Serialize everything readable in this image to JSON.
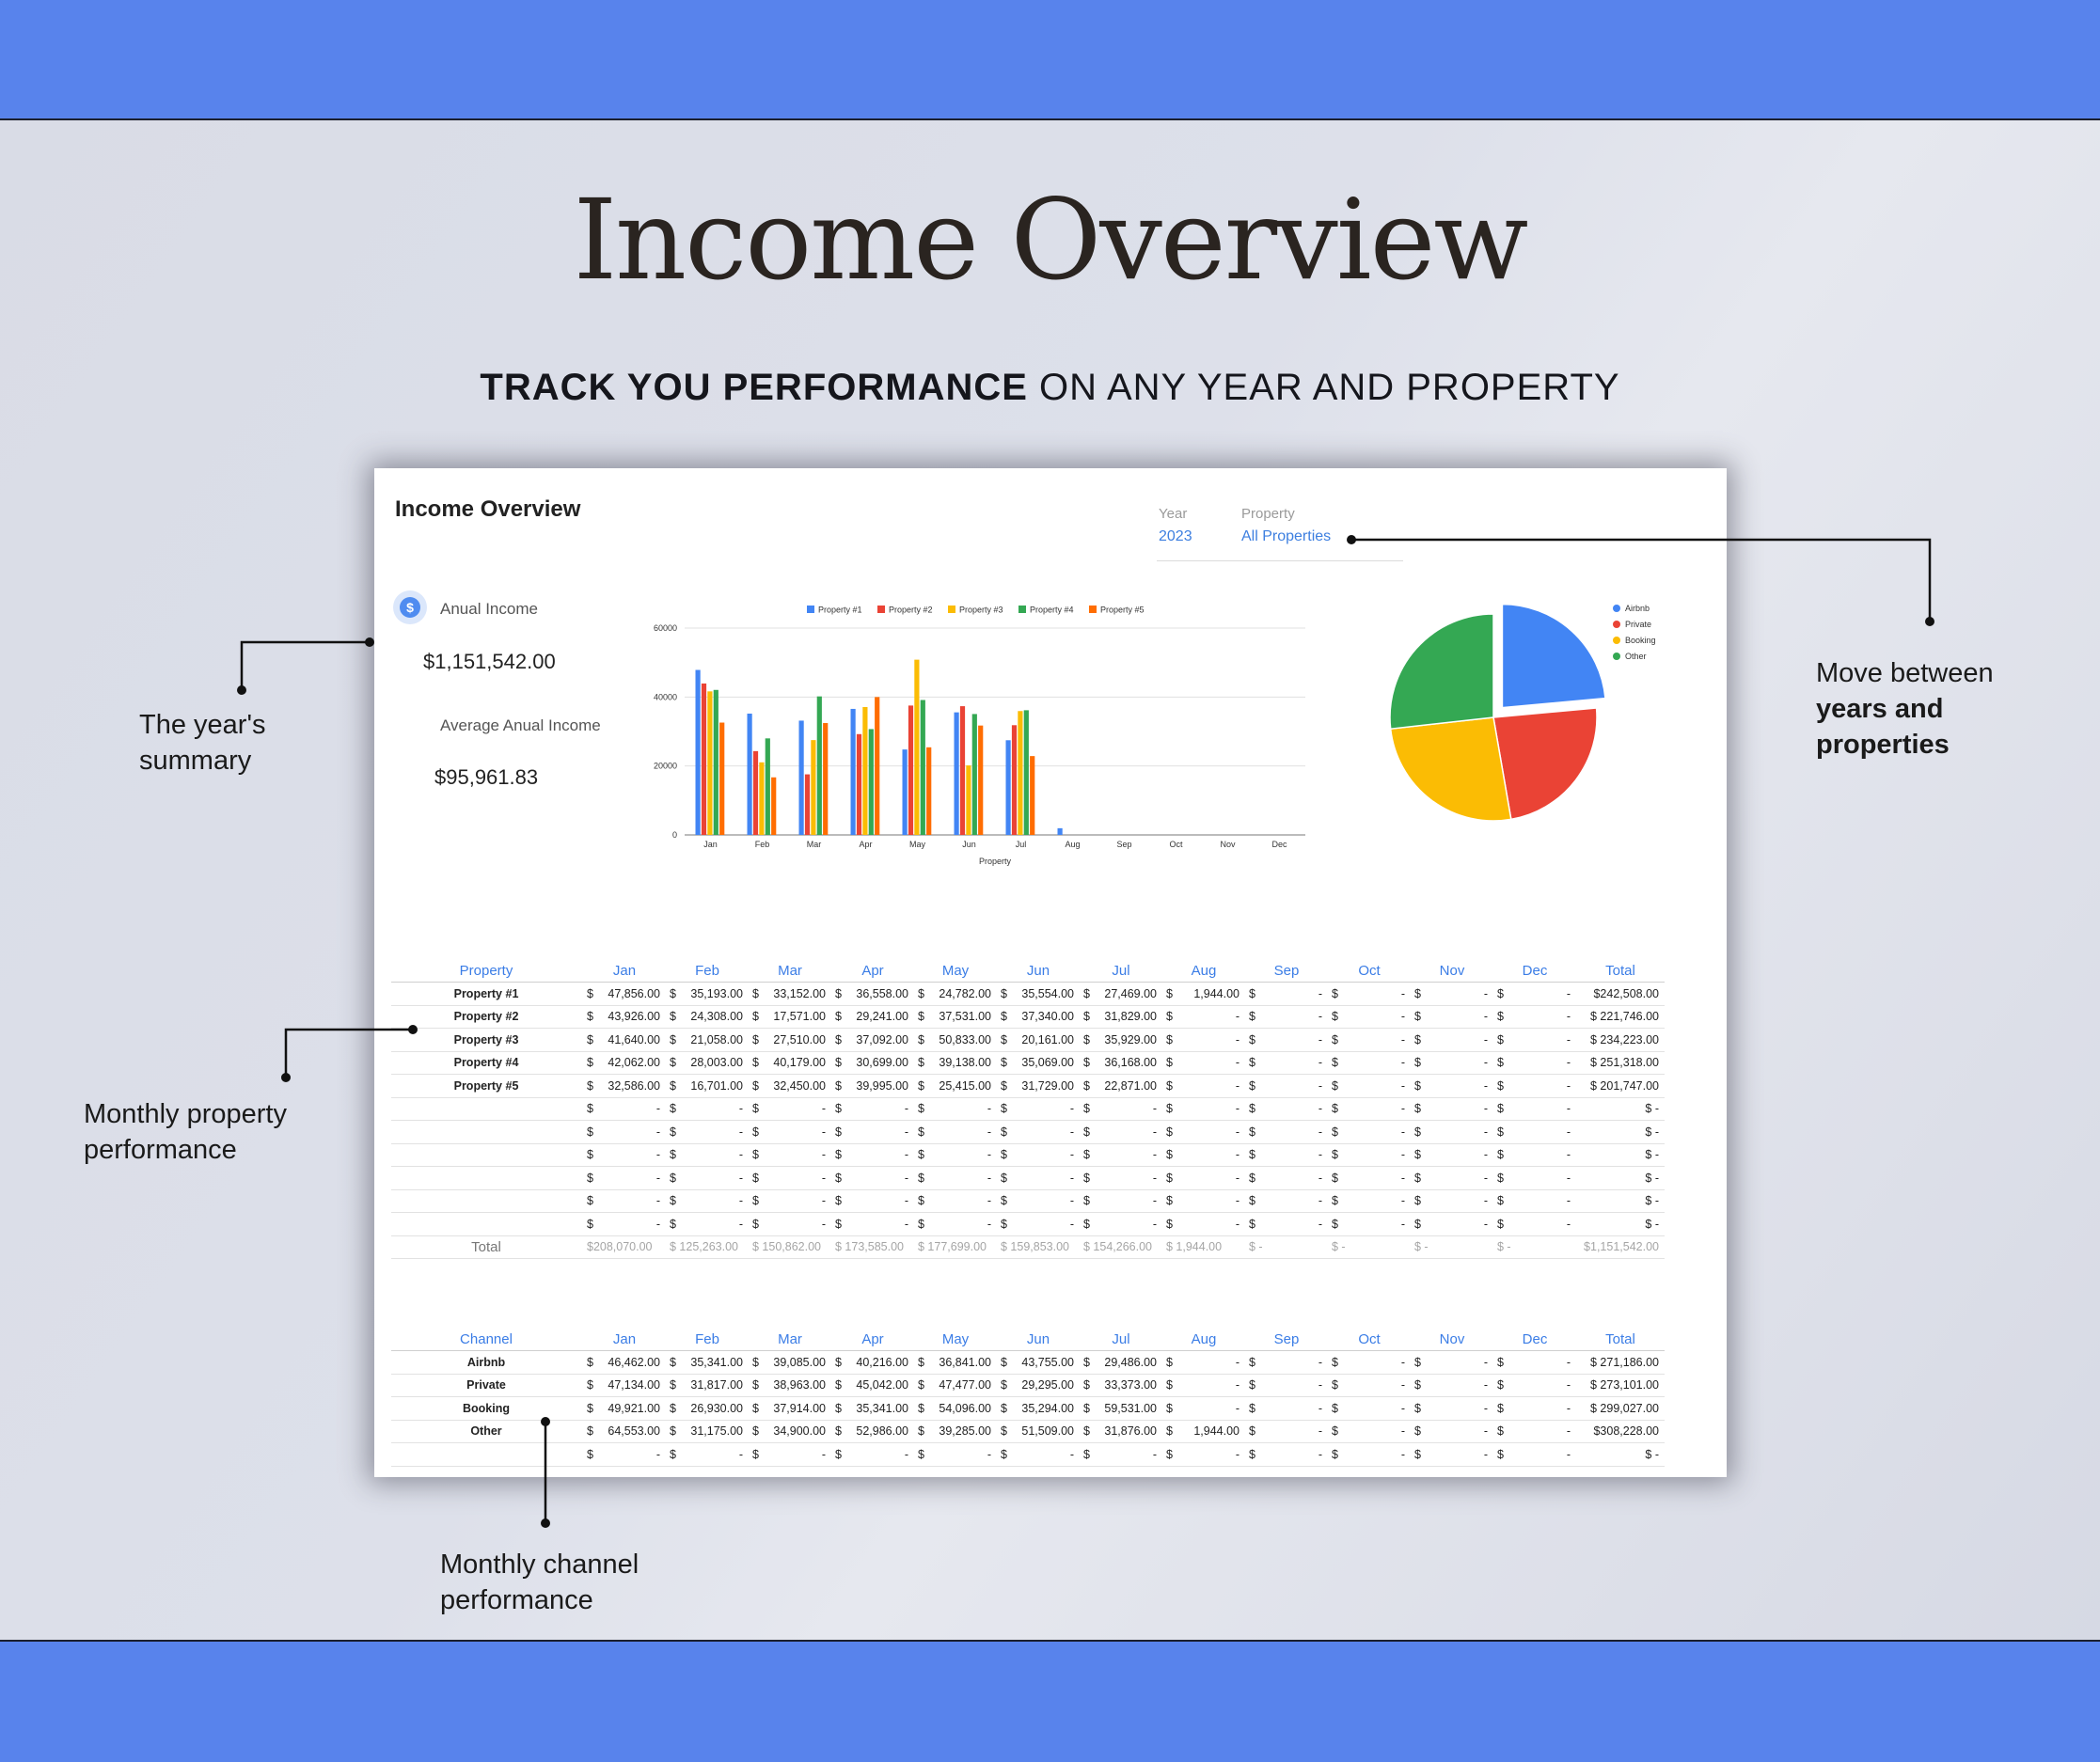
{
  "hero": {
    "title": "Income Overview",
    "subtitle_bold": "TRACK YOU PERFORMANCE",
    "subtitle_rest": " ON ANY YEAR AND PROPERTY"
  },
  "sheet": {
    "title": "Income Overview",
    "year_label": "Year",
    "year_value": "2023",
    "property_label": "Property",
    "property_value": "All Properties",
    "coin_symbol": "$",
    "annual_income_label": "Anual Income",
    "annual_income_value": "$1,151,542.00",
    "avg_income_label": "Average Anual Income",
    "avg_income_value": "$95,961.83"
  },
  "callouts": {
    "year_summary": [
      "The year's",
      "summary"
    ],
    "monthly_property": [
      "Monthly property",
      "performance"
    ],
    "monthly_channel": [
      "Monthly channel",
      "performance"
    ],
    "move_between": [
      "Move between",
      "years and",
      "properties"
    ]
  },
  "chart_data": [
    {
      "type": "bar",
      "xlabel": "Property",
      "categories": [
        "Jan",
        "Feb",
        "Mar",
        "Apr",
        "May",
        "Jun",
        "Jul",
        "Aug",
        "Sep",
        "Oct",
        "Nov",
        "Dec"
      ],
      "ylim": [
        0,
        60000
      ],
      "yticks": [
        "0",
        "20000",
        "40000",
        "60000"
      ],
      "grid": true,
      "legend_position": "top",
      "series": [
        {
          "name": "Property #1",
          "color": "#4285f4",
          "values": [
            47856,
            35193,
            33152,
            36558,
            24782,
            35554,
            27469,
            1944,
            0,
            0,
            0,
            0
          ]
        },
        {
          "name": "Property #2",
          "color": "#ea4335",
          "values": [
            43926,
            24308,
            17571,
            29241,
            37531,
            37340,
            31829,
            0,
            0,
            0,
            0,
            0
          ]
        },
        {
          "name": "Property #3",
          "color": "#fbbc04",
          "values": [
            41640,
            21058,
            27510,
            37092,
            50833,
            20161,
            35929,
            0,
            0,
            0,
            0,
            0
          ]
        },
        {
          "name": "Property #4",
          "color": "#34a853",
          "values": [
            42062,
            28003,
            40179,
            30699,
            39138,
            35069,
            36168,
            0,
            0,
            0,
            0,
            0
          ]
        },
        {
          "name": "Property #5",
          "color": "#ff6d01",
          "values": [
            32586,
            16701,
            32450,
            39995,
            25415,
            31729,
            22871,
            0,
            0,
            0,
            0,
            0
          ]
        }
      ]
    },
    {
      "type": "pie",
      "legend_position": "top-right",
      "slices": [
        {
          "name": "Airbnb",
          "color": "#4285f4",
          "value": 271186
        },
        {
          "name": "Private",
          "color": "#ea4335",
          "value": 273101
        },
        {
          "name": "Booking",
          "color": "#fbbc04",
          "value": 299027
        },
        {
          "name": "Other",
          "color": "#34a853",
          "value": 308228
        }
      ]
    }
  ],
  "property_table": {
    "row_header": "Property",
    "months": [
      "Jan",
      "Feb",
      "Mar",
      "Apr",
      "May",
      "Jun",
      "Jul",
      "Aug",
      "Sep",
      "Oct",
      "Nov",
      "Dec"
    ],
    "total_header": "Total",
    "currency": "$",
    "dash": "-",
    "rows": [
      {
        "label": "Property #1",
        "values": [
          "47,856.00",
          "35,193.00",
          "33,152.00",
          "36,558.00",
          "24,782.00",
          "35,554.00",
          "27,469.00",
          "1,944.00",
          "-",
          "-",
          "-",
          "-"
        ],
        "total": "$242,508.00"
      },
      {
        "label": "Property #2",
        "values": [
          "43,926.00",
          "24,308.00",
          "17,571.00",
          "29,241.00",
          "37,531.00",
          "37,340.00",
          "31,829.00",
          "-",
          "-",
          "-",
          "-",
          "-"
        ],
        "total": "$ 221,746.00"
      },
      {
        "label": "Property #3",
        "values": [
          "41,640.00",
          "21,058.00",
          "27,510.00",
          "37,092.00",
          "50,833.00",
          "20,161.00",
          "35,929.00",
          "-",
          "-",
          "-",
          "-",
          "-"
        ],
        "total": "$ 234,223.00"
      },
      {
        "label": "Property #4",
        "values": [
          "42,062.00",
          "28,003.00",
          "40,179.00",
          "30,699.00",
          "39,138.00",
          "35,069.00",
          "36,168.00",
          "-",
          "-",
          "-",
          "-",
          "-"
        ],
        "total": "$ 251,318.00"
      },
      {
        "label": "Property #5",
        "values": [
          "32,586.00",
          "16,701.00",
          "32,450.00",
          "39,995.00",
          "25,415.00",
          "31,729.00",
          "22,871.00",
          "-",
          "-",
          "-",
          "-",
          "-"
        ],
        "total": "$ 201,747.00"
      },
      {
        "label": "",
        "values": [
          "-",
          "-",
          "-",
          "-",
          "-",
          "-",
          "-",
          "-",
          "-",
          "-",
          "-",
          "-"
        ],
        "total": "$         -"
      },
      {
        "label": "",
        "values": [
          "-",
          "-",
          "-",
          "-",
          "-",
          "-",
          "-",
          "-",
          "-",
          "-",
          "-",
          "-"
        ],
        "total": "$         -"
      },
      {
        "label": "",
        "values": [
          "-",
          "-",
          "-",
          "-",
          "-",
          "-",
          "-",
          "-",
          "-",
          "-",
          "-",
          "-"
        ],
        "total": "$         -"
      },
      {
        "label": "",
        "values": [
          "-",
          "-",
          "-",
          "-",
          "-",
          "-",
          "-",
          "-",
          "-",
          "-",
          "-",
          "-"
        ],
        "total": "$         -"
      },
      {
        "label": "",
        "values": [
          "-",
          "-",
          "-",
          "-",
          "-",
          "-",
          "-",
          "-",
          "-",
          "-",
          "-",
          "-"
        ],
        "total": "$         -"
      },
      {
        "label": "",
        "values": [
          "-",
          "-",
          "-",
          "-",
          "-",
          "-",
          "-",
          "-",
          "-",
          "-",
          "-",
          "-"
        ],
        "total": "$         -"
      }
    ],
    "total_row": {
      "label": "Total",
      "values": [
        "$208,070.00",
        "$ 125,263.00",
        "$ 150,862.00",
        "$ 173,585.00",
        "$ 177,699.00",
        "$ 159,853.00",
        "$ 154,266.00",
        "$    1,944.00",
        "$         -",
        "$         -",
        "$         -",
        "$         -"
      ],
      "total": "$1,151,542.00"
    }
  },
  "channel_table": {
    "row_header": "Channel",
    "months": [
      "Jan",
      "Feb",
      "Mar",
      "Apr",
      "May",
      "Jun",
      "Jul",
      "Aug",
      "Sep",
      "Oct",
      "Nov",
      "Dec"
    ],
    "total_header": "Total",
    "currency": "$",
    "rows": [
      {
        "label": "Airbnb",
        "values": [
          "46,462.00",
          "35,341.00",
          "39,085.00",
          "40,216.00",
          "36,841.00",
          "43,755.00",
          "29,486.00",
          "-",
          "-",
          "-",
          "-",
          "-"
        ],
        "total": "$ 271,186.00"
      },
      {
        "label": "Private",
        "values": [
          "47,134.00",
          "31,817.00",
          "38,963.00",
          "45,042.00",
          "47,477.00",
          "29,295.00",
          "33,373.00",
          "-",
          "-",
          "-",
          "-",
          "-"
        ],
        "total": "$ 273,101.00"
      },
      {
        "label": "Booking",
        "values": [
          "49,921.00",
          "26,930.00",
          "37,914.00",
          "35,341.00",
          "54,096.00",
          "35,294.00",
          "59,531.00",
          "-",
          "-",
          "-",
          "-",
          "-"
        ],
        "total": "$ 299,027.00"
      },
      {
        "label": "Other",
        "values": [
          "64,553.00",
          "31,175.00",
          "34,900.00",
          "52,986.00",
          "39,285.00",
          "51,509.00",
          "31,876.00",
          "1,944.00",
          "-",
          "-",
          "-",
          "-"
        ],
        "total": "$308,228.00"
      },
      {
        "label": "",
        "values": [
          "-",
          "-",
          "-",
          "-",
          "-",
          "-",
          "-",
          "-",
          "-",
          "-",
          "-",
          "-"
        ],
        "total": "$         -"
      }
    ]
  }
}
